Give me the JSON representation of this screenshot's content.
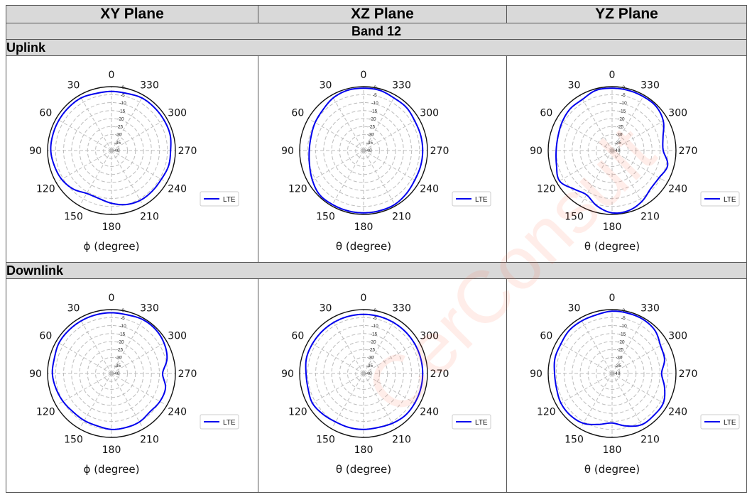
{
  "header": {
    "columns": [
      "XY Plane",
      "XZ Plane",
      "YZ Plane"
    ],
    "band": "Band 12",
    "sections": [
      "Uplink",
      "Downlink"
    ]
  },
  "watermark": "CerConsult",
  "chart_data": [
    {
      "type": "polar-line",
      "section": "Uplink",
      "plane": "XY",
      "xlabel": "ϕ (degree)",
      "angle_ticks": [
        0,
        30,
        60,
        90,
        120,
        150,
        180,
        210,
        240,
        270,
        300,
        330
      ],
      "radial_ticks": [
        0,
        -5,
        -10,
        -15,
        -20,
        -25,
        -30,
        -35,
        -40
      ],
      "rlim": [
        -40,
        0
      ],
      "legend": "LTE",
      "color": "#0000ee",
      "series": [
        {
          "name": "LTE",
          "angles": [
            0,
            15,
            30,
            45,
            60,
            75,
            90,
            105,
            120,
            135,
            150,
            165,
            180,
            195,
            210,
            225,
            240,
            255,
            270,
            285,
            300,
            315,
            330,
            345
          ],
          "values": [
            -3,
            -3,
            -2,
            -2,
            -2,
            -2,
            -2,
            -3,
            -4,
            -6,
            -9,
            -9,
            -7,
            -5,
            -4,
            -4,
            -4,
            -3,
            -3,
            -2,
            -2,
            -2,
            -2,
            -3
          ]
        }
      ]
    },
    {
      "type": "polar-line",
      "section": "Uplink",
      "plane": "XZ",
      "xlabel": "θ (degree)",
      "angle_ticks": [
        0,
        30,
        60,
        90,
        120,
        150,
        180,
        210,
        240,
        270,
        300,
        330
      ],
      "radial_ticks": [
        0,
        -5,
        -10,
        -15,
        -20,
        -25,
        -30,
        -35,
        -40
      ],
      "rlim": [
        -40,
        0
      ],
      "legend": "LTE",
      "color": "#0000ee",
      "series": [
        {
          "name": "LTE",
          "angles": [
            0,
            15,
            30,
            45,
            60,
            75,
            90,
            105,
            120,
            135,
            150,
            165,
            180,
            195,
            210,
            225,
            240,
            255,
            270,
            285,
            300,
            315,
            330,
            345
          ],
          "values": [
            -1,
            -1,
            -2,
            -4,
            -5,
            -6,
            -6,
            -5,
            -3,
            -1,
            -1,
            -1,
            -1,
            -1,
            -1,
            -2,
            -3,
            -3,
            -3,
            -3,
            -3,
            -2,
            -2,
            -1
          ]
        }
      ]
    },
    {
      "type": "polar-line",
      "section": "Uplink",
      "plane": "YZ",
      "xlabel": "θ (degree)",
      "angle_ticks": [
        0,
        30,
        60,
        90,
        120,
        150,
        180,
        210,
        240,
        270,
        300,
        330
      ],
      "radial_ticks": [
        0,
        -5,
        -10,
        -15,
        -20,
        -25,
        -30,
        -35,
        -40
      ],
      "rlim": [
        -40,
        0
      ],
      "legend": "LTE",
      "color": "#0000ee",
      "series": [
        {
          "name": "LTE",
          "angles": [
            0,
            15,
            30,
            45,
            60,
            75,
            90,
            105,
            120,
            135,
            150,
            165,
            180,
            195,
            210,
            225,
            240,
            255,
            270,
            285,
            300,
            315,
            330,
            345
          ],
          "values": [
            -1,
            -1,
            -3,
            -3,
            -4,
            -5,
            -5,
            -4,
            -2,
            -6,
            -8,
            -4,
            -1,
            -1,
            -3,
            -6,
            -6,
            -4,
            -8,
            -7,
            -3,
            -1,
            -1,
            -1
          ]
        }
      ]
    },
    {
      "type": "polar-line",
      "section": "Downlink",
      "plane": "XY",
      "xlabel": "ϕ (degree)",
      "angle_ticks": [
        0,
        30,
        60,
        90,
        120,
        150,
        180,
        210,
        240,
        270,
        300,
        330
      ],
      "radial_ticks": [
        0,
        -5,
        -10,
        -15,
        -20,
        -25,
        -30,
        -35,
        -40
      ],
      "rlim": [
        -40,
        0
      ],
      "legend": "LTE",
      "color": "#0000ee",
      "series": [
        {
          "name": "LTE",
          "angles": [
            0,
            15,
            30,
            45,
            60,
            75,
            90,
            105,
            120,
            135,
            150,
            165,
            180,
            195,
            210,
            225,
            240,
            255,
            270,
            285,
            300,
            315,
            330,
            345
          ],
          "values": [
            -2,
            -2,
            -2,
            -2,
            -2,
            -3,
            -3,
            -4,
            -5,
            -6,
            -6,
            -6,
            -5,
            -5,
            -5,
            -6,
            -5,
            -5,
            -8,
            -4,
            -2,
            -1,
            -1,
            -2
          ]
        }
      ]
    },
    {
      "type": "polar-line",
      "section": "Downlink",
      "plane": "XZ",
      "xlabel": "θ (degree)",
      "angle_ticks": [
        0,
        30,
        60,
        90,
        120,
        150,
        180,
        210,
        240,
        270,
        300,
        330
      ],
      "radial_ticks": [
        0,
        -5,
        -10,
        -15,
        -20,
        -25,
        -30,
        -35,
        -40
      ],
      "rlim": [
        -40,
        0
      ],
      "legend": "LTE",
      "color": "#0000ee",
      "series": [
        {
          "name": "LTE",
          "angles": [
            0,
            15,
            30,
            45,
            60,
            75,
            90,
            105,
            120,
            135,
            150,
            165,
            180,
            195,
            210,
            225,
            240,
            255,
            270,
            285,
            300,
            315,
            330,
            345
          ],
          "values": [
            -3,
            -3,
            -3,
            -3,
            -3,
            -3,
            -4,
            -4,
            -3,
            -4,
            -5,
            -5,
            -5,
            -5,
            -4,
            -3,
            -3,
            -3,
            -3,
            -3,
            -3,
            -3,
            -3,
            -3
          ]
        }
      ]
    },
    {
      "type": "polar-line",
      "section": "Downlink",
      "plane": "YZ",
      "xlabel": "θ (degree)",
      "angle_ticks": [
        0,
        30,
        60,
        90,
        120,
        150,
        180,
        210,
        240,
        270,
        300,
        330
      ],
      "radial_ticks": [
        0,
        -5,
        -10,
        -15,
        -20,
        -25,
        -30,
        -35,
        -40
      ],
      "rlim": [
        -40,
        0
      ],
      "legend": "LTE",
      "color": "#0000ee",
      "series": [
        {
          "name": "LTE",
          "angles": [
            0,
            15,
            30,
            45,
            60,
            75,
            90,
            105,
            120,
            135,
            150,
            165,
            180,
            195,
            210,
            225,
            240,
            255,
            270,
            285,
            300,
            315,
            330,
            345
          ],
          "values": [
            -1,
            -2,
            -2,
            -2,
            -3,
            -3,
            -4,
            -4,
            -3,
            -3,
            -4,
            -7,
            -9,
            -6,
            -3,
            -3,
            -3,
            -6,
            -9,
            -6,
            -5,
            -2,
            -1,
            -1
          ]
        }
      ]
    }
  ]
}
